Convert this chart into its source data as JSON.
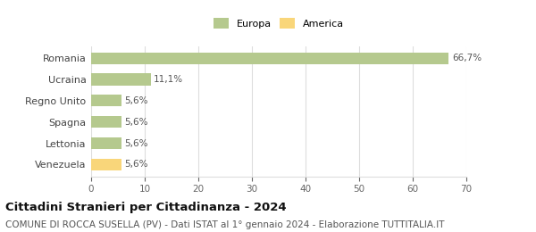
{
  "categories": [
    "Venezuela",
    "Lettonia",
    "Spagna",
    "Regno Unito",
    "Ucraina",
    "Romania"
  ],
  "values": [
    5.6,
    5.6,
    5.6,
    5.6,
    11.1,
    66.7
  ],
  "labels": [
    "5,6%",
    "5,6%",
    "5,6%",
    "5,6%",
    "11,1%",
    "66,7%"
  ],
  "colors": [
    "#f9d67a",
    "#b5c98e",
    "#b5c98e",
    "#b5c98e",
    "#b5c98e",
    "#b5c98e"
  ],
  "legend": [
    {
      "label": "Europa",
      "color": "#b5c98e"
    },
    {
      "label": "America",
      "color": "#f9d67a"
    }
  ],
  "xlim": [
    0,
    70
  ],
  "xticks": [
    0,
    10,
    20,
    30,
    40,
    50,
    60,
    70
  ],
  "title": "Cittadini Stranieri per Cittadinanza - 2024",
  "subtitle": "COMUNE DI ROCCA SUSELLA (PV) - Dati ISTAT al 1° gennaio 2024 - Elaborazione TUTTITALIA.IT",
  "title_fontsize": 9.5,
  "subtitle_fontsize": 7.5,
  "label_fontsize": 7.5,
  "tick_fontsize": 7.5,
  "ytick_fontsize": 8,
  "background_color": "#ffffff",
  "grid_color": "#dddddd"
}
